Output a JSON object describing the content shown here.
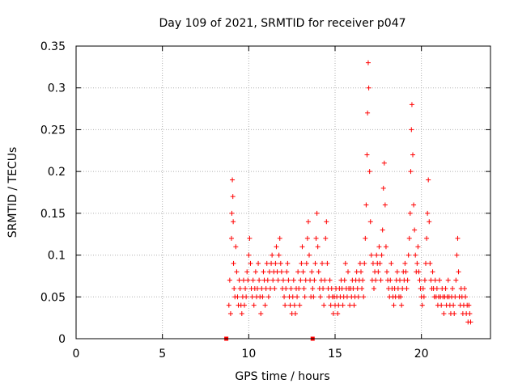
{
  "chart_data": {
    "type": "scatter",
    "title": "Day 109 of 2021, SRMTID for receiver p047",
    "xlabel": "GPS time / hours",
    "ylabel": "SRMTID / TECUs",
    "xlim": [
      0,
      24
    ],
    "ylim": [
      0,
      0.35
    ],
    "x_ticks": [
      0,
      5,
      10,
      15,
      20
    ],
    "x_tick_labels": [
      "0",
      "5",
      "10",
      "15",
      "20"
    ],
    "y_ticks": [
      0,
      0.05,
      0.1,
      0.15,
      0.2,
      0.25,
      0.3,
      0.35
    ],
    "y_tick_labels": [
      "0",
      "0.05",
      "0.1",
      "0.15",
      "0.2",
      "0.25",
      "0.3",
      "0.35"
    ],
    "grid": true,
    "legend": "none",
    "marker": "+",
    "marker_color": "#ff0000",
    "zero_markers": [
      {
        "x": 8.7,
        "y": 0
      },
      {
        "x": 13.7,
        "y": 0
      }
    ],
    "series": [
      {
        "name": "SRMTID",
        "color": "#ff0000",
        "points": [
          [
            8.85,
            0.04
          ],
          [
            8.9,
            0.07
          ],
          [
            8.95,
            0.03
          ],
          [
            9.0,
            0.12
          ],
          [
            9.02,
            0.15
          ],
          [
            9.05,
            0.19
          ],
          [
            9.08,
            0.17
          ],
          [
            9.1,
            0.14
          ],
          [
            9.12,
            0.09
          ],
          [
            9.15,
            0.06
          ],
          [
            9.2,
            0.05
          ],
          [
            9.25,
            0.11
          ],
          [
            9.3,
            0.08
          ],
          [
            9.35,
            0.05
          ],
          [
            9.4,
            0.04
          ],
          [
            9.45,
            0.07
          ],
          [
            9.5,
            0.06
          ],
          [
            9.55,
            0.04
          ],
          [
            9.6,
            0.03
          ],
          [
            9.65,
            0.05
          ],
          [
            9.7,
            0.07
          ],
          [
            9.75,
            0.04
          ],
          [
            9.8,
            0.06
          ],
          [
            9.85,
            0.05
          ],
          [
            9.9,
            0.08
          ],
          [
            9.95,
            0.07
          ],
          [
            10.0,
            0.1
          ],
          [
            10.05,
            0.12
          ],
          [
            10.1,
            0.09
          ],
          [
            10.15,
            0.06
          ],
          [
            10.2,
            0.05
          ],
          [
            10.25,
            0.07
          ],
          [
            10.3,
            0.04
          ],
          [
            10.35,
            0.06
          ],
          [
            10.4,
            0.08
          ],
          [
            10.45,
            0.05
          ],
          [
            10.5,
            0.06
          ],
          [
            10.55,
            0.09
          ],
          [
            10.6,
            0.07
          ],
          [
            10.65,
            0.05
          ],
          [
            10.7,
            0.03
          ],
          [
            10.75,
            0.06
          ],
          [
            10.8,
            0.05
          ],
          [
            10.85,
            0.08
          ],
          [
            10.9,
            0.07
          ],
          [
            10.95,
            0.04
          ],
          [
            11.0,
            0.06
          ],
          [
            11.05,
            0.09
          ],
          [
            11.1,
            0.07
          ],
          [
            11.15,
            0.05
          ],
          [
            11.2,
            0.08
          ],
          [
            11.25,
            0.06
          ],
          [
            11.3,
            0.09
          ],
          [
            11.35,
            0.1
          ],
          [
            11.4,
            0.07
          ],
          [
            11.45,
            0.08
          ],
          [
            11.5,
            0.06
          ],
          [
            11.55,
            0.09
          ],
          [
            11.6,
            0.11
          ],
          [
            11.65,
            0.08
          ],
          [
            11.7,
            0.07
          ],
          [
            11.75,
            0.1
          ],
          [
            11.8,
            0.12
          ],
          [
            11.85,
            0.09
          ],
          [
            11.9,
            0.08
          ],
          [
            11.95,
            0.06
          ],
          [
            12.0,
            0.07
          ],
          [
            12.05,
            0.05
          ],
          [
            12.1,
            0.04
          ],
          [
            12.15,
            0.06
          ],
          [
            12.2,
            0.08
          ],
          [
            12.25,
            0.09
          ],
          [
            12.3,
            0.07
          ],
          [
            12.35,
            0.05
          ],
          [
            12.4,
            0.04
          ],
          [
            12.45,
            0.06
          ],
          [
            12.5,
            0.03
          ],
          [
            12.55,
            0.05
          ],
          [
            12.6,
            0.07
          ],
          [
            12.65,
            0.04
          ],
          [
            12.7,
            0.03
          ],
          [
            12.75,
            0.06
          ],
          [
            12.8,
            0.05
          ],
          [
            12.85,
            0.08
          ],
          [
            12.9,
            0.06
          ],
          [
            12.95,
            0.04
          ],
          [
            13.0,
            0.07
          ],
          [
            13.05,
            0.09
          ],
          [
            13.1,
            0.11
          ],
          [
            13.15,
            0.08
          ],
          [
            13.2,
            0.06
          ],
          [
            13.25,
            0.05
          ],
          [
            13.3,
            0.07
          ],
          [
            13.35,
            0.09
          ],
          [
            13.4,
            0.12
          ],
          [
            13.45,
            0.14
          ],
          [
            13.5,
            0.1
          ],
          [
            13.55,
            0.07
          ],
          [
            13.6,
            0.05
          ],
          [
            13.65,
            0.08
          ],
          [
            13.7,
            0.06
          ],
          [
            13.75,
            0.05
          ],
          [
            13.8,
            0.07
          ],
          [
            13.85,
            0.09
          ],
          [
            13.9,
            0.12
          ],
          [
            13.95,
            0.15
          ],
          [
            14.0,
            0.11
          ],
          [
            14.05,
            0.08
          ],
          [
            14.1,
            0.06
          ],
          [
            14.15,
            0.05
          ],
          [
            14.2,
            0.07
          ],
          [
            14.25,
            0.09
          ],
          [
            14.3,
            0.06
          ],
          [
            14.35,
            0.04
          ],
          [
            14.4,
            0.07
          ],
          [
            14.45,
            0.12
          ],
          [
            14.5,
            0.14
          ],
          [
            14.55,
            0.09
          ],
          [
            14.6,
            0.06
          ],
          [
            14.65,
            0.05
          ],
          [
            14.7,
            0.07
          ],
          [
            14.75,
            0.04
          ],
          [
            14.8,
            0.06
          ],
          [
            14.85,
            0.05
          ],
          [
            14.9,
            0.03
          ],
          [
            14.95,
            0.05
          ],
          [
            15.0,
            0.04
          ],
          [
            15.05,
            0.06
          ],
          [
            15.1,
            0.05
          ],
          [
            15.15,
            0.03
          ],
          [
            15.2,
            0.04
          ],
          [
            15.25,
            0.06
          ],
          [
            15.3,
            0.05
          ],
          [
            15.35,
            0.07
          ],
          [
            15.4,
            0.06
          ],
          [
            15.45,
            0.04
          ],
          [
            15.5,
            0.05
          ],
          [
            15.55,
            0.07
          ],
          [
            15.6,
            0.09
          ],
          [
            15.65,
            0.06
          ],
          [
            15.7,
            0.05
          ],
          [
            15.75,
            0.08
          ],
          [
            15.8,
            0.06
          ],
          [
            15.85,
            0.04
          ],
          [
            15.9,
            0.06
          ],
          [
            15.95,
            0.05
          ],
          [
            16.0,
            0.07
          ],
          [
            16.05,
            0.06
          ],
          [
            16.1,
            0.04
          ],
          [
            16.15,
            0.05
          ],
          [
            16.2,
            0.07
          ],
          [
            16.25,
            0.08
          ],
          [
            16.3,
            0.06
          ],
          [
            16.35,
            0.05
          ],
          [
            16.4,
            0.07
          ],
          [
            16.45,
            0.09
          ],
          [
            16.5,
            0.08
          ],
          [
            16.55,
            0.06
          ],
          [
            16.6,
            0.07
          ],
          [
            16.65,
            0.05
          ],
          [
            16.7,
            0.09
          ],
          [
            16.75,
            0.12
          ],
          [
            16.8,
            0.16
          ],
          [
            16.85,
            0.22
          ],
          [
            16.88,
            0.27
          ],
          [
            16.92,
            0.33
          ],
          [
            16.95,
            0.3
          ],
          [
            17.0,
            0.2
          ],
          [
            17.05,
            0.14
          ],
          [
            17.1,
            0.1
          ],
          [
            17.15,
            0.07
          ],
          [
            17.2,
            0.09
          ],
          [
            17.25,
            0.06
          ],
          [
            17.3,
            0.08
          ],
          [
            17.35,
            0.07
          ],
          [
            17.4,
            0.1
          ],
          [
            17.45,
            0.09
          ],
          [
            17.5,
            0.08
          ],
          [
            17.55,
            0.11
          ],
          [
            17.6,
            0.09
          ],
          [
            17.65,
            0.07
          ],
          [
            17.7,
            0.1
          ],
          [
            17.75,
            0.13
          ],
          [
            17.8,
            0.18
          ],
          [
            17.85,
            0.21
          ],
          [
            17.9,
            0.16
          ],
          [
            17.95,
            0.11
          ],
          [
            18.0,
            0.08
          ],
          [
            18.05,
            0.07
          ],
          [
            18.1,
            0.06
          ],
          [
            18.15,
            0.05
          ],
          [
            18.2,
            0.07
          ],
          [
            18.25,
            0.09
          ],
          [
            18.3,
            0.06
          ],
          [
            18.35,
            0.05
          ],
          [
            18.4,
            0.04
          ],
          [
            18.45,
            0.06
          ],
          [
            18.5,
            0.05
          ],
          [
            18.55,
            0.07
          ],
          [
            18.6,
            0.08
          ],
          [
            18.65,
            0.06
          ],
          [
            18.7,
            0.05
          ],
          [
            18.75,
            0.07
          ],
          [
            18.8,
            0.05
          ],
          [
            18.85,
            0.04
          ],
          [
            18.9,
            0.06
          ],
          [
            18.95,
            0.08
          ],
          [
            19.0,
            0.07
          ],
          [
            19.05,
            0.09
          ],
          [
            19.1,
            0.08
          ],
          [
            19.15,
            0.06
          ],
          [
            19.2,
            0.07
          ],
          [
            19.25,
            0.1
          ],
          [
            19.3,
            0.12
          ],
          [
            19.35,
            0.15
          ],
          [
            19.38,
            0.2
          ],
          [
            19.42,
            0.25
          ],
          [
            19.45,
            0.28
          ],
          [
            19.5,
            0.22
          ],
          [
            19.55,
            0.16
          ],
          [
            19.6,
            0.13
          ],
          [
            19.65,
            0.1
          ],
          [
            19.7,
            0.08
          ],
          [
            19.75,
            0.09
          ],
          [
            19.8,
            0.11
          ],
          [
            19.85,
            0.08
          ],
          [
            19.9,
            0.07
          ],
          [
            19.95,
            0.06
          ],
          [
            20.0,
            0.05
          ],
          [
            20.05,
            0.04
          ],
          [
            20.1,
            0.06
          ],
          [
            20.15,
            0.05
          ],
          [
            20.2,
            0.07
          ],
          [
            20.25,
            0.09
          ],
          [
            20.3,
            0.12
          ],
          [
            20.35,
            0.15
          ],
          [
            20.4,
            0.19
          ],
          [
            20.45,
            0.14
          ],
          [
            20.5,
            0.09
          ],
          [
            20.55,
            0.07
          ],
          [
            20.6,
            0.06
          ],
          [
            20.65,
            0.08
          ],
          [
            20.7,
            0.06
          ],
          [
            20.75,
            0.05
          ],
          [
            20.8,
            0.07
          ],
          [
            20.85,
            0.05
          ],
          [
            20.9,
            0.06
          ],
          [
            20.95,
            0.04
          ],
          [
            21.0,
            0.05
          ],
          [
            21.05,
            0.07
          ],
          [
            21.1,
            0.05
          ],
          [
            21.15,
            0.04
          ],
          [
            21.2,
            0.06
          ],
          [
            21.25,
            0.05
          ],
          [
            21.3,
            0.03
          ],
          [
            21.35,
            0.05
          ],
          [
            21.4,
            0.06
          ],
          [
            21.45,
            0.04
          ],
          [
            21.5,
            0.05
          ],
          [
            21.55,
            0.07
          ],
          [
            21.6,
            0.05
          ],
          [
            21.65,
            0.04
          ],
          [
            21.7,
            0.03
          ],
          [
            21.75,
            0.05
          ],
          [
            21.8,
            0.06
          ],
          [
            21.85,
            0.04
          ],
          [
            21.9,
            0.03
          ],
          [
            21.95,
            0.05
          ],
          [
            22.0,
            0.07
          ],
          [
            22.05,
            0.1
          ],
          [
            22.1,
            0.12
          ],
          [
            22.15,
            0.08
          ],
          [
            22.2,
            0.05
          ],
          [
            22.25,
            0.04
          ],
          [
            22.3,
            0.06
          ],
          [
            22.35,
            0.05
          ],
          [
            22.4,
            0.03
          ],
          [
            22.45,
            0.04
          ],
          [
            22.5,
            0.06
          ],
          [
            22.55,
            0.05
          ],
          [
            22.6,
            0.03
          ],
          [
            22.65,
            0.04
          ],
          [
            22.7,
            0.02
          ],
          [
            22.75,
            0.04
          ],
          [
            22.8,
            0.03
          ],
          [
            22.85,
            0.02
          ]
        ]
      }
    ]
  }
}
